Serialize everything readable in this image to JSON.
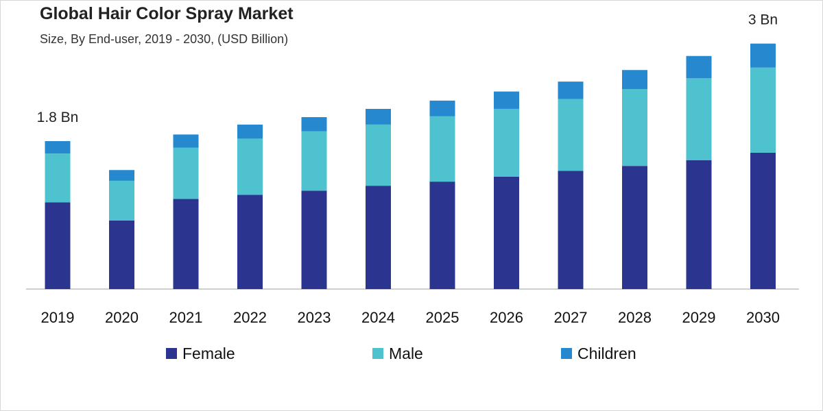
{
  "chart_data": {
    "type": "bar",
    "stacked": true,
    "title": "Global Hair Color Spray Market",
    "subtitle": "Size, By End-user, 2019 - 2030, (USD Billion)",
    "categories": [
      "2019",
      "2020",
      "2021",
      "2022",
      "2023",
      "2024",
      "2025",
      "2026",
      "2027",
      "2028",
      "2029",
      "2030"
    ],
    "series": [
      {
        "name": "Female",
        "color": "#2b3590",
        "values": [
          1.05,
          0.83,
          1.09,
          1.14,
          1.19,
          1.25,
          1.3,
          1.36,
          1.43,
          1.49,
          1.56,
          1.65
        ]
      },
      {
        "name": "Male",
        "color": "#4ec3cf",
        "values": [
          0.59,
          0.48,
          0.62,
          0.68,
          0.72,
          0.74,
          0.79,
          0.82,
          0.87,
          0.93,
          0.99,
          1.03
        ]
      },
      {
        "name": "Children",
        "color": "#2689cf",
        "values": [
          0.15,
          0.13,
          0.16,
          0.17,
          0.17,
          0.19,
          0.19,
          0.21,
          0.21,
          0.23,
          0.27,
          0.29
        ]
      }
    ],
    "annotations": [
      {
        "category": "2019",
        "text": "1.8 Bn"
      },
      {
        "category": "2030",
        "text": "3 Bn"
      }
    ],
    "ylim": [
      0,
      3.0
    ],
    "grid": false,
    "legend": "bottom"
  }
}
